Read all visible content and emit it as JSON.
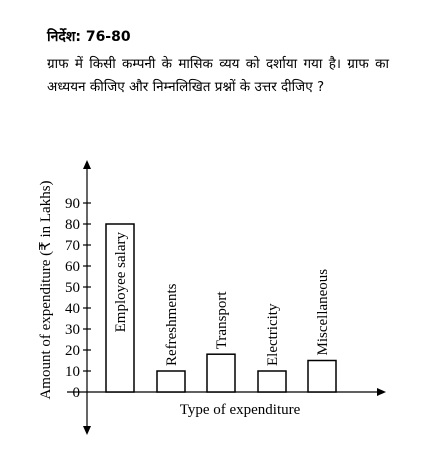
{
  "question": {
    "heading": "निर्देश: 76-80",
    "text": "ग्राफ में किसी कम्पनी के मासिक व्यय को दर्शाया गया है। ग्राफ का अध्ययन कीजिए और निम्नलिखित प्रश्नों के उत्तर दीजिए ?"
  },
  "chart_data": {
    "type": "bar",
    "categories": [
      "Employee salary",
      "Refreshments",
      "Transport",
      "Electricity",
      "Miscellaneous"
    ],
    "values": [
      80,
      10,
      18,
      10,
      15
    ],
    "xlabel": "Type of expenditure",
    "ylabel": "Amount of expenditure (₹ in Lakhs)",
    "ylim": [
      0,
      90
    ],
    "yticks": [
      0,
      10,
      20,
      30,
      40,
      50,
      60,
      70,
      80,
      90
    ],
    "grid": false,
    "bar_labels_inside": true
  }
}
